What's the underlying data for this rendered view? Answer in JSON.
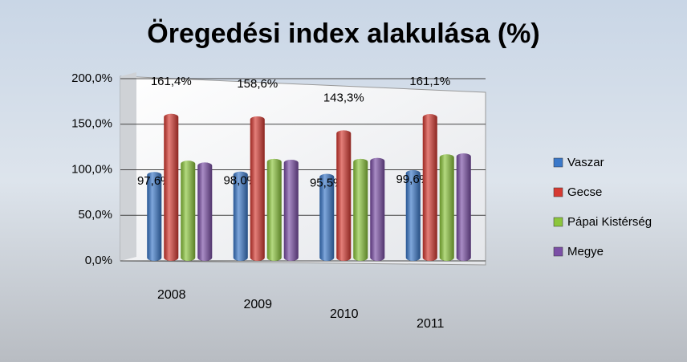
{
  "chart_data": {
    "type": "bar",
    "title": "Öregedési index  alakulása (%)",
    "categories": [
      "2008",
      "2009",
      "2010",
      "2011"
    ],
    "series": [
      {
        "name": "Vaszar",
        "color": "#3a78c9",
        "values": [
          97.6,
          98.0,
          95.5,
          99.6
        ],
        "value_labels": [
          "97,6%",
          "98,0%",
          "95,5%",
          "99,6%"
        ]
      },
      {
        "name": "Gecse",
        "color": "#d63a32",
        "values": [
          161.4,
          158.6,
          143.3,
          161.1
        ],
        "value_labels": [
          "161,4%",
          "158,6%",
          "143,3%",
          "161,1%"
        ]
      },
      {
        "name": "Pápai Kistérség",
        "color": "#8cc63c",
        "values": [
          110,
          112,
          112,
          117
        ]
      },
      {
        "name": "Megye",
        "color": "#7b4fa6",
        "values": [
          108,
          111,
          113,
          118
        ]
      }
    ],
    "ylim": [
      0,
      200
    ],
    "yticks": [
      {
        "value": 0,
        "label": "0,0%"
      },
      {
        "value": 50,
        "label": "50,0%"
      },
      {
        "value": 100,
        "label": "100,0%"
      },
      {
        "value": 150,
        "label": "150,0%"
      },
      {
        "value": 200,
        "label": "200,0%"
      }
    ],
    "grid": true,
    "legend": "right"
  }
}
